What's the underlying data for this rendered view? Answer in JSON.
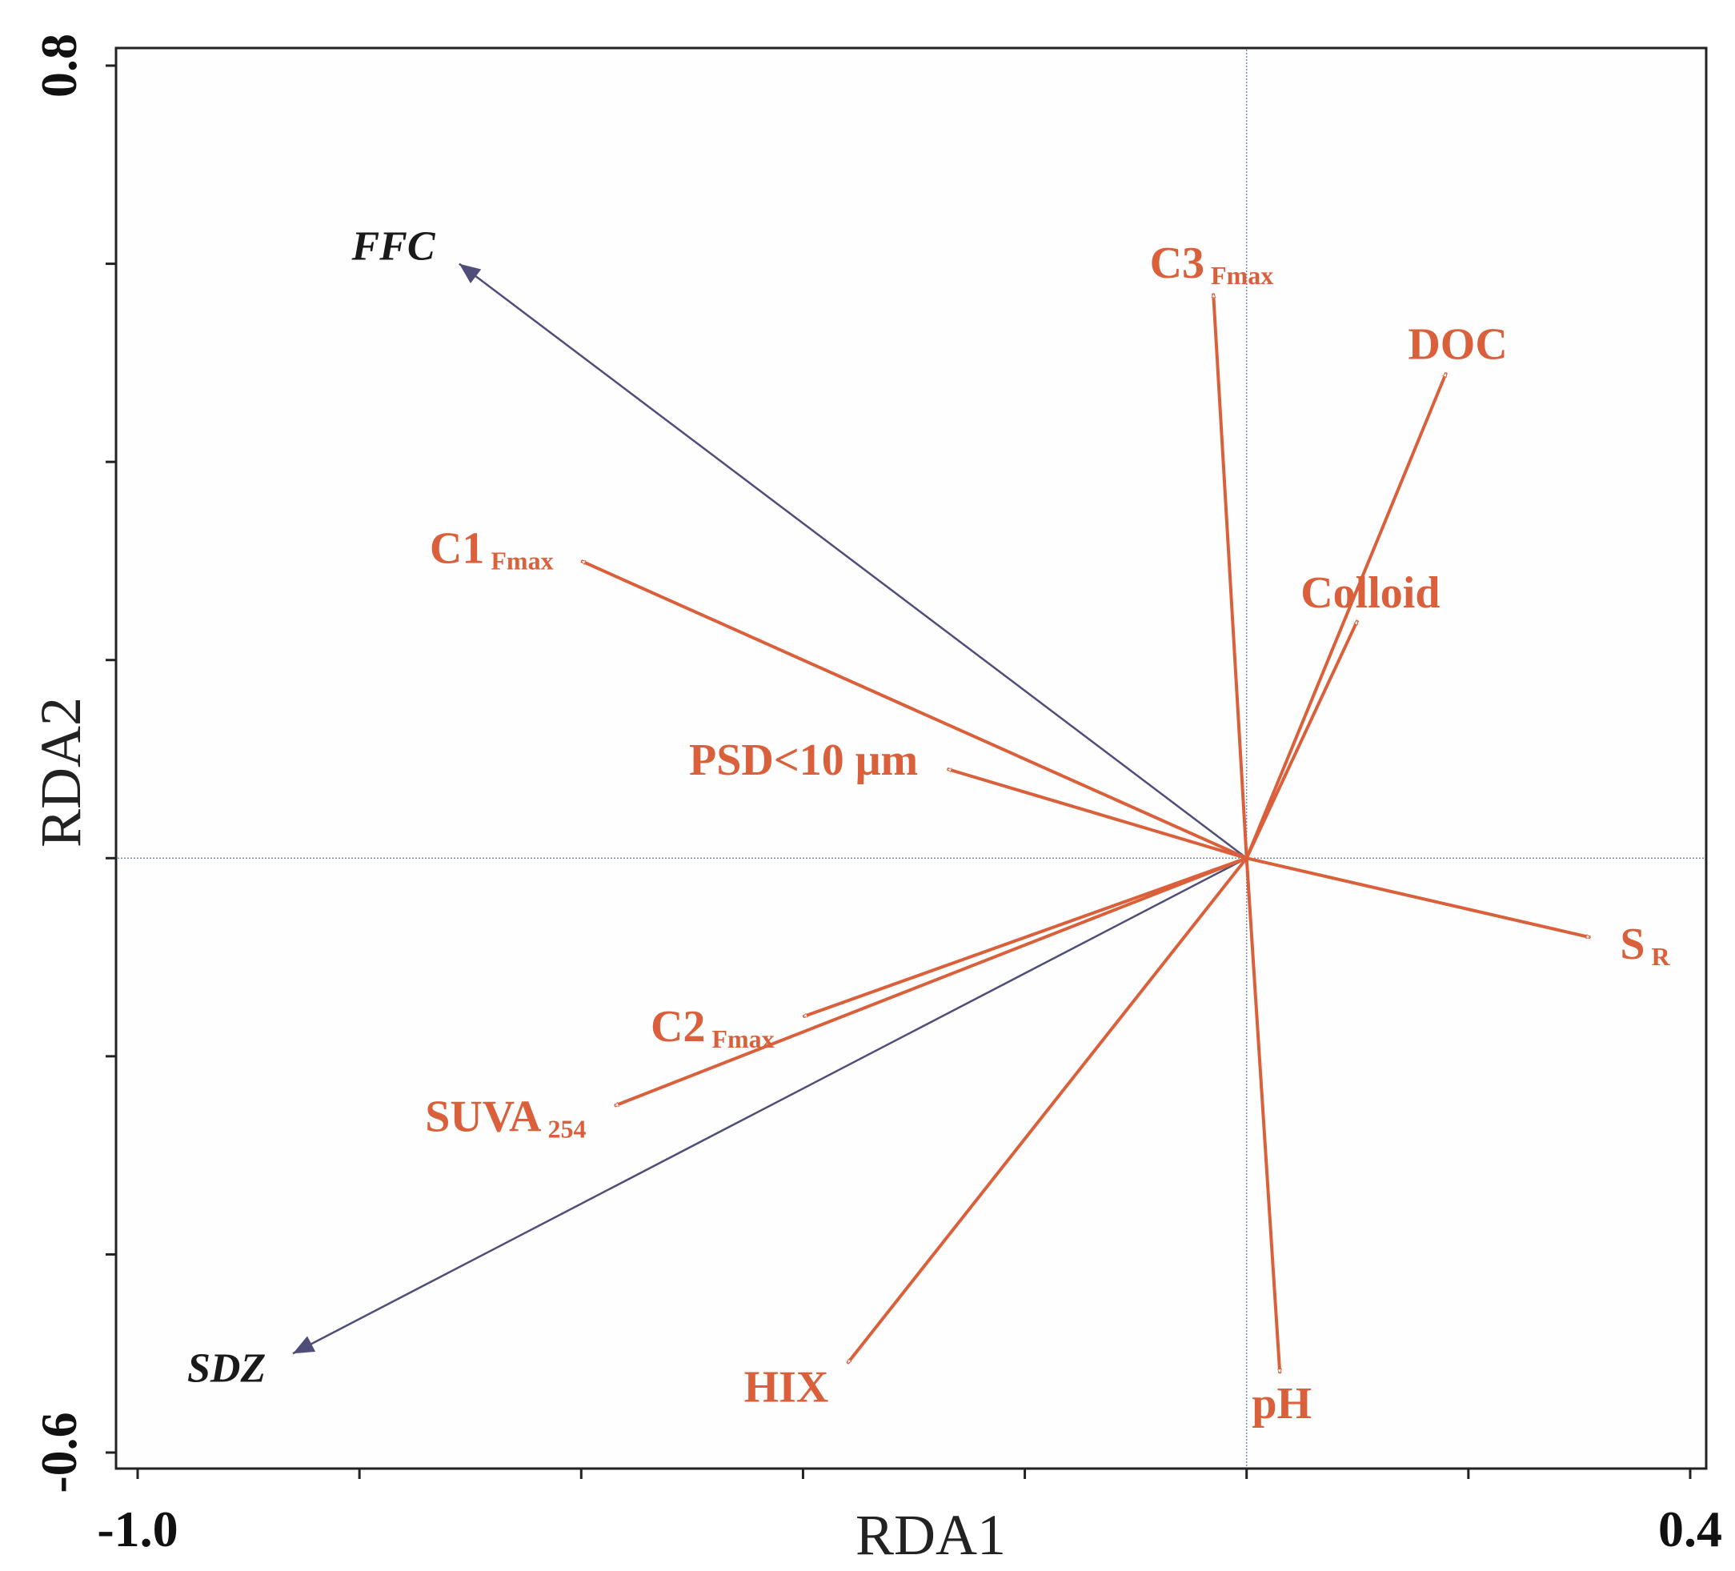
{
  "chart_data": {
    "type": "biplot",
    "xlabel": "RDA1",
    "ylabel": "RDA2",
    "xlim": [
      -1.0,
      0.4
    ],
    "ylim": [
      -0.6,
      0.8
    ],
    "x_tick_labels": [
      "-1.0",
      "0.4"
    ],
    "y_tick_labels": [
      "-0.6",
      "0.8"
    ],
    "x_minor_ticks": [
      -1.0,
      -0.8,
      -0.6,
      -0.4,
      -0.2,
      0.0,
      0.2,
      0.4
    ],
    "y_minor_ticks": [
      -0.6,
      -0.4,
      -0.2,
      0.0,
      0.2,
      0.4,
      0.6,
      0.8
    ],
    "colors": {
      "response": "#d9603b",
      "supplementary": "#4e4e78",
      "frame": "#222222",
      "zero_line": "#7a8db0"
    },
    "vectors": [
      {
        "name": "FFC",
        "label": "FFC",
        "sub": "",
        "x": -0.71,
        "y": 0.6,
        "group": "supplementary"
      },
      {
        "name": "SDZ",
        "label": "SDZ",
        "sub": "",
        "x": -0.86,
        "y": -0.5,
        "group": "supplementary"
      },
      {
        "name": "C3 Fmax",
        "label": "C3",
        "sub": "Fmax",
        "x": -0.03,
        "y": 0.57,
        "group": "response"
      },
      {
        "name": "DOC",
        "label": "DOC",
        "sub": "",
        "x": 0.18,
        "y": 0.49,
        "group": "response"
      },
      {
        "name": "C1 Fmax",
        "label": "C1",
        "sub": "Fmax",
        "x": -0.6,
        "y": 0.3,
        "group": "response"
      },
      {
        "name": "Colloid",
        "label": "Colloid",
        "sub": "",
        "x": 0.1,
        "y": 0.24,
        "group": "response"
      },
      {
        "name": "PSD<10 μm",
        "label": "PSD<10 μm",
        "sub": "",
        "x": -0.27,
        "y": 0.09,
        "group": "response"
      },
      {
        "name": "SR",
        "label": "S",
        "sub": "R",
        "x": 0.31,
        "y": -0.08,
        "group": "response"
      },
      {
        "name": "C2 Fmax",
        "label": "C2",
        "sub": "Fmax",
        "x": -0.4,
        "y": -0.16,
        "group": "response"
      },
      {
        "name": "SUVA254",
        "label": "SUVA",
        "sub": "254",
        "x": -0.57,
        "y": -0.25,
        "group": "response"
      },
      {
        "name": "HIX",
        "label": "HIX",
        "sub": "",
        "x": -0.36,
        "y": -0.51,
        "group": "response"
      },
      {
        "name": "pH",
        "label": "pH",
        "sub": "",
        "x": 0.03,
        "y": -0.52,
        "group": "response"
      }
    ]
  }
}
